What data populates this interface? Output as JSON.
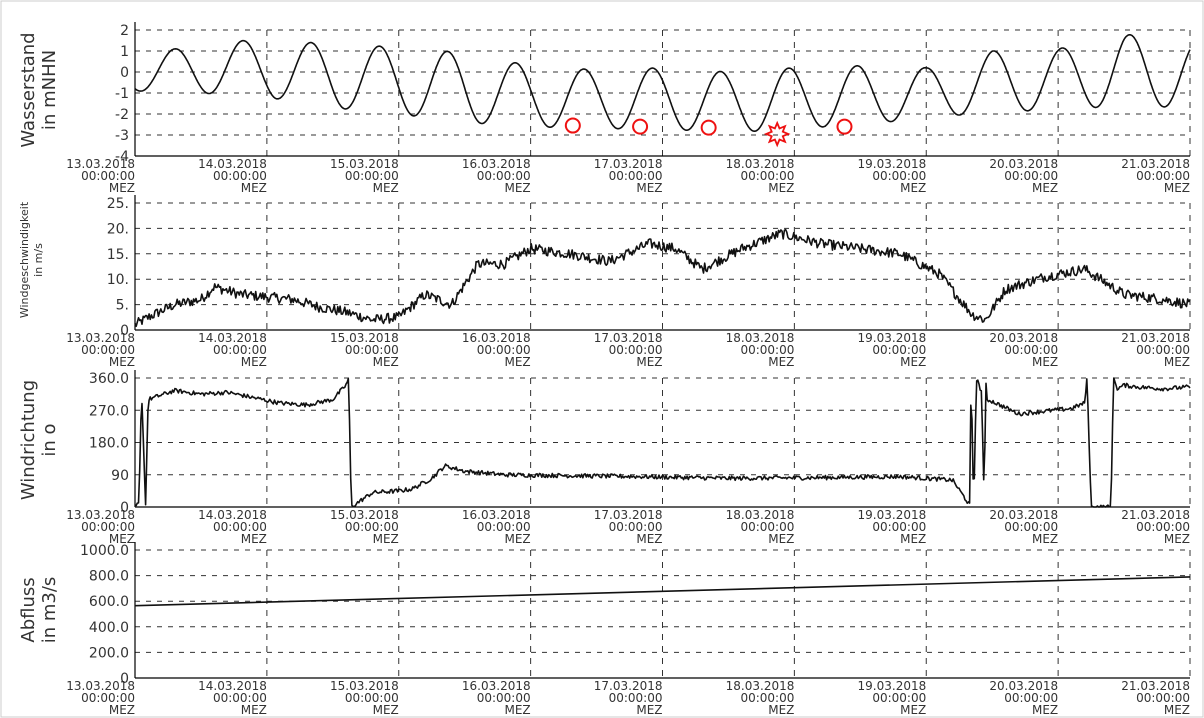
{
  "chart_data": [
    {
      "id": "wasserstand",
      "type": "line",
      "ylabel": [
        "Wasserstand",
        "in mNHN"
      ],
      "ylim": [
        -4,
        2
      ],
      "yticks": [
        -4,
        -3,
        -2,
        -1,
        0,
        1,
        2
      ],
      "ytick_labels": [
        "-4",
        "-3",
        "-2",
        "-1",
        "0",
        "1",
        "2"
      ],
      "grid": true,
      "tide": {
        "period_days": 0.5175,
        "first_peak_day": 0.3,
        "drop_end_day": 4.5,
        "trough_end_day": 6.0
      },
      "series": [
        {
          "x_days": [
            0,
            0.5,
            1,
            1.5,
            2,
            2.5,
            3,
            3.5,
            4,
            4.5,
            5,
            5.5,
            6,
            6.5,
            7,
            7.5,
            8
          ],
          "peak": [
            0.8,
            1.3,
            1.6,
            1.3,
            1.2,
            0.9,
            0.3,
            0.1,
            0.2,
            0.0,
            0.2,
            0.3,
            0.2,
            1.0,
            1.1,
            1.8,
            1.5
          ],
          "trough": [
            -0.9,
            -1.0,
            -1.2,
            -1.7,
            -2.0,
            -2.4,
            -2.6,
            -2.7,
            -2.7,
            -2.9,
            -2.7,
            -2.5,
            -2.2,
            -1.9,
            -1.8,
            -1.6,
            -1.7
          ]
        }
      ],
      "markers": [
        {
          "x_days": 3.32,
          "y": -2.55,
          "shape": "circle",
          "color": "#ee1111"
        },
        {
          "x_days": 3.83,
          "y": -2.6,
          "shape": "circle",
          "color": "#ee1111"
        },
        {
          "x_days": 4.35,
          "y": -2.65,
          "shape": "circle",
          "color": "#ee1111"
        },
        {
          "x_days": 4.87,
          "y": -2.95,
          "shape": "star",
          "color": "#ee1111"
        },
        {
          "x_days": 5.38,
          "y": -2.6,
          "shape": "circle",
          "color": "#ee1111"
        }
      ]
    },
    {
      "id": "windgeschwindigkeit",
      "type": "line",
      "ylabel": [
        "Windgeschwindigkeit",
        "in m/s"
      ],
      "ylim": [
        0,
        25
      ],
      "yticks": [
        0,
        5,
        10,
        15,
        20,
        25
      ],
      "ytick_labels": [
        "0",
        "5.",
        "10.",
        "15.",
        "20.",
        "25."
      ],
      "grid": true,
      "series": [
        {
          "x_days": [
            0,
            0.1,
            0.3,
            0.5,
            0.6,
            0.8,
            1.0,
            1.2,
            1.4,
            1.6,
            1.8,
            2.0,
            2.2,
            2.4,
            2.6,
            2.8,
            3.0,
            3.3,
            3.6,
            3.9,
            4.1,
            4.3,
            4.6,
            4.9,
            5.2,
            5.5,
            5.8,
            6.1,
            6.35,
            6.45,
            6.6,
            6.9,
            7.2,
            7.5,
            7.8,
            8.0
          ],
          "y": [
            1,
            2.5,
            5,
            6,
            8.5,
            7,
            6.5,
            6,
            4.5,
            3.5,
            2,
            2.5,
            7,
            5,
            13,
            13,
            16,
            15,
            13.5,
            17,
            16,
            12,
            16,
            19,
            17,
            16,
            15,
            11,
            3,
            2,
            8,
            10.5,
            12,
            7,
            6,
            5
          ]
        }
      ],
      "noise": 1.0
    },
    {
      "id": "windrichtung",
      "type": "line",
      "ylabel": [
        "Windrichtung",
        "in o"
      ],
      "ylim": [
        0,
        360
      ],
      "yticks": [
        0,
        90,
        180,
        270,
        360
      ],
      "ytick_labels": [
        "0",
        "90",
        "180.0",
        "270.0",
        "360.0"
      ],
      "grid": true,
      "series": [
        {
          "x_days": [
            0,
            0.03,
            0.05,
            0.08,
            0.1,
            0.3,
            0.5,
            0.7,
            0.9,
            1.1,
            1.3,
            1.5,
            1.6,
            1.62,
            1.64,
            1.8,
            2.0,
            2.1,
            2.25,
            2.35,
            2.5,
            2.8,
            3.2,
            3.8,
            4.5,
            5.2,
            5.8,
            6.2,
            6.33,
            6.34,
            6.36,
            6.38,
            6.42,
            6.44,
            6.45,
            6.46,
            6.5,
            6.7,
            7.1,
            7.2,
            7.22,
            7.25,
            7.3,
            7.4,
            7.42,
            7.45,
            7.5,
            7.6,
            7.8,
            8.0
          ],
          "y": [
            0,
            10,
            330,
            5,
            300,
            325,
            315,
            320,
            305,
            290,
            285,
            300,
            340,
            360,
            0,
            40,
            45,
            50,
            80,
            115,
            100,
            90,
            88,
            85,
            80,
            82,
            85,
            75,
            5,
            360,
            0,
            360,
            320,
            5,
            360,
            300,
            295,
            260,
            275,
            290,
            360,
            0,
            0,
            0,
            360,
            330,
            340,
            335,
            330,
            335
          ]
        }
      ],
      "noise": 6
    },
    {
      "id": "abfluss",
      "type": "line",
      "ylabel": [
        "Abfluss",
        "in m3/s"
      ],
      "ylim": [
        0,
        1000
      ],
      "yticks": [
        0,
        200,
        400,
        600,
        800,
        1000
      ],
      "ytick_labels": [
        "0",
        "200.0",
        "400.0",
        "600.0",
        "800.0",
        "1000.0"
      ],
      "grid": true,
      "series": [
        {
          "x_days": [
            0,
            8
          ],
          "y": [
            565,
            790
          ]
        }
      ]
    }
  ],
  "x_axis": {
    "xlim_days": [
      0,
      8
    ],
    "ticks": [
      {
        "date": "13.03.2018",
        "time": "00:00:00",
        "tz": "MEZ"
      },
      {
        "date": "14.03.2018",
        "time": "00:00:00",
        "tz": "MEZ"
      },
      {
        "date": "15.03.2018",
        "time": "00:00:00",
        "tz": "MEZ"
      },
      {
        "date": "16.03.2018",
        "time": "00:00:00",
        "tz": "MEZ"
      },
      {
        "date": "17.03.2018",
        "time": "00:00:00",
        "tz": "MEZ"
      },
      {
        "date": "18.03.2018",
        "time": "00:00:00",
        "tz": "MEZ"
      },
      {
        "date": "19.03.2018",
        "time": "00:00:00",
        "tz": "MEZ"
      },
      {
        "date": "20.03.2018",
        "time": "00:00:00",
        "tz": "MEZ"
      },
      {
        "date": "21.03.2018",
        "time": "00:00:00",
        "tz": "MEZ"
      }
    ]
  }
}
